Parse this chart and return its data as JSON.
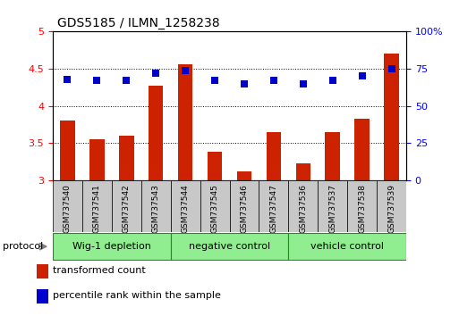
{
  "title": "GDS5185 / ILMN_1258238",
  "samples": [
    "GSM737540",
    "GSM737541",
    "GSM737542",
    "GSM737543",
    "GSM737544",
    "GSM737545",
    "GSM737546",
    "GSM737547",
    "GSM737536",
    "GSM737537",
    "GSM737538",
    "GSM737539"
  ],
  "transformed_count": [
    3.8,
    3.55,
    3.6,
    4.27,
    4.56,
    3.38,
    3.12,
    3.65,
    3.22,
    3.65,
    3.83,
    4.71
  ],
  "percentile_rank": [
    68,
    67,
    67,
    72,
    74,
    67,
    65,
    67,
    65,
    67,
    70,
    75
  ],
  "ylim_left": [
    3.0,
    5.0
  ],
  "ylim_right": [
    0,
    100
  ],
  "yticks_left": [
    3.0,
    3.5,
    4.0,
    4.5,
    5.0
  ],
  "ytick_labels_left": [
    "3",
    "3.5",
    "4",
    "4.5",
    "5"
  ],
  "yticks_right": [
    0,
    25,
    50,
    75,
    100
  ],
  "ytick_labels_right": [
    "0",
    "25",
    "50",
    "75",
    "100%"
  ],
  "bar_color": "#CC2200",
  "dot_color": "#0000CC",
  "bar_width": 0.5,
  "dot_size": 35,
  "green_color": "#90EE90",
  "green_border": "#228B22",
  "gray_color": "#C8C8C8",
  "groups": [
    {
      "label": "Wig-1 depletion",
      "start": 0,
      "end": 4
    },
    {
      "label": "negative control",
      "start": 4,
      "end": 8
    },
    {
      "label": "vehicle control",
      "start": 8,
      "end": 12
    }
  ],
  "protocol_label": "protocol",
  "legend_tc": "transformed count",
  "legend_pr": "percentile rank within the sample",
  "fig_width": 5.13,
  "fig_height": 3.54,
  "dpi": 100
}
